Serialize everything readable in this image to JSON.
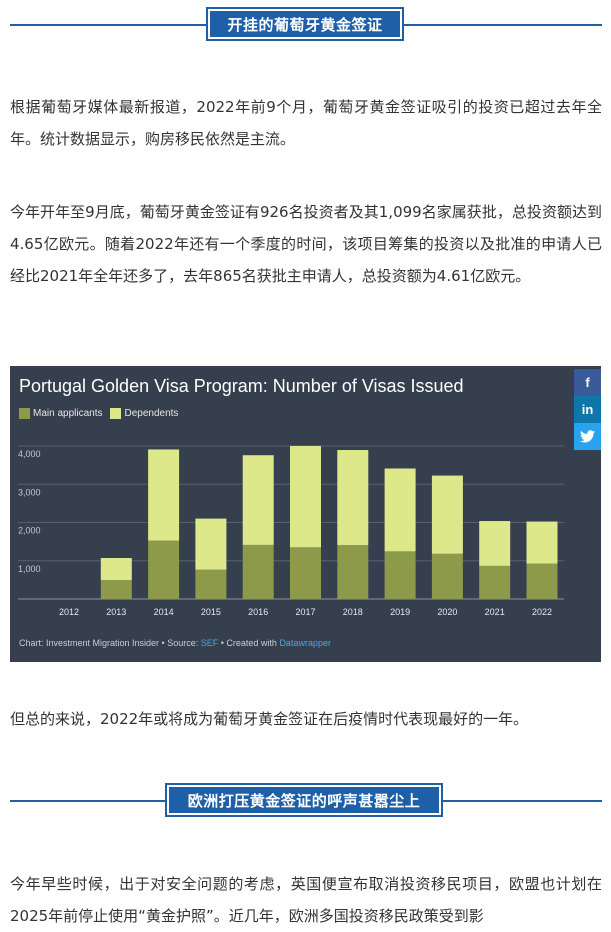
{
  "section1": {
    "title": "开挂的葡萄牙黄金签证"
  },
  "para1": "根据葡萄牙媒体最新报道，2022年前9个月，葡萄牙黄金签证吸引的投资已超过去年全年。统计数据显示，购房移民依然是主流。",
  "para2": "今年开年至9月底，葡萄牙黄金签证有926名投资者及其1,099名家属获批，总投资额达到4.65亿欧元。随着2022年还有一个季度的时间，该项目筹集的投资以及批准的申请人已经比2021年全年还多了，去年865名获批主申请人，总投资额为4.61亿欧元。",
  "chart_data": {
    "type": "bar",
    "stacked": true,
    "title": "Portugal Golden Visa Program: Number of Visas Issued",
    "categories": [
      "2012",
      "2013",
      "2014",
      "2015",
      "2016",
      "2017",
      "2018",
      "2019",
      "2020",
      "2021",
      "2022"
    ],
    "series": [
      {
        "name": "Main applicants",
        "color": "#8c9a4a",
        "values": [
          2,
          494,
          1526,
          766,
          1414,
          1351,
          1409,
          1245,
          1182,
          865,
          926
        ]
      },
      {
        "name": "Dependents",
        "color": "#dce88a",
        "values": [
          0,
          578,
          2384,
          1336,
          2345,
          2651,
          2486,
          2167,
          2045,
          1173,
          1099
        ]
      }
    ],
    "yticks": [
      "1,000",
      "2,000",
      "3,000",
      "4,000"
    ],
    "ylim": [
      0,
      4000
    ],
    "grid": true,
    "legend_position": "top-left"
  },
  "chart_footer": {
    "prefix": "Chart: Investment Migration Insider • Source: ",
    "source": "SEF",
    "middle": " • Created with ",
    "tool": "Datawrapper"
  },
  "share": {
    "facebook": "f",
    "linkedin": "in",
    "twitter_icon": "twitter-bird"
  },
  "para3": "但总的来说，2022年或将成为葡萄牙黄金签证在后疫情时代表现最好的一年。",
  "section2": {
    "title": "欧洲打压黄金签证的呼声甚嚣尘上"
  },
  "para4": "今年早些时候，出于对安全问题的考虑，英国便宣布取消投资移民项目，欧盟也计划在2025年前停止使用“黄金护照”。近几年，欧洲多国投资移民政策受到影"
}
